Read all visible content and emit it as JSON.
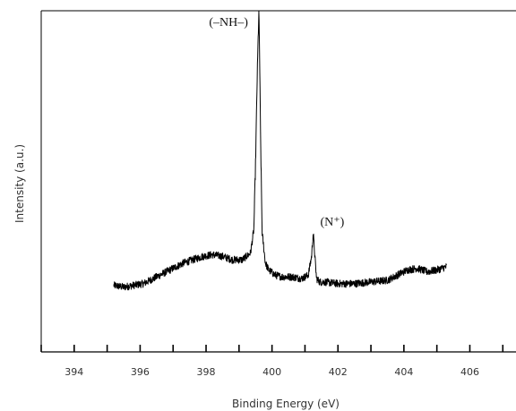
{
  "chart_data": {
    "type": "line",
    "title": "",
    "xlabel": "Binding Energy (eV)",
    "ylabel": "Intensity (a.u.)",
    "xlim": [
      393,
      407.4
    ],
    "ylim": [
      0,
      100
    ],
    "x_ticks": [
      394,
      396,
      398,
      400,
      402,
      404,
      406
    ],
    "x_tick_labels": [
      "394",
      "396",
      "398",
      "400",
      "402",
      "404",
      "406"
    ],
    "y_ticks_labeled": false,
    "grid": false,
    "legend": "none",
    "line_color": "#000000",
    "annotations": [
      {
        "text": "(–NH–)",
        "x": 399.6,
        "y": 95.5
      },
      {
        "text": "(N⁺)",
        "x": 401.3,
        "y": 37
      }
    ],
    "series": [
      {
        "x": [
          395.2,
          395.5,
          395.8,
          396.1,
          396.4,
          396.7,
          397.0,
          397.3,
          397.6,
          397.9,
          398.2,
          398.5,
          398.8,
          399.1,
          399.35,
          399.45,
          399.5,
          399.55,
          399.58,
          399.6,
          399.62,
          399.65,
          399.7,
          399.8,
          399.9,
          400.1,
          400.3,
          400.6,
          400.9,
          401.1,
          401.2,
          401.25,
          401.3,
          401.35,
          401.45,
          401.6,
          402.0,
          402.5,
          403.0,
          403.5,
          403.8,
          404.1,
          404.4,
          404.7,
          405.0,
          405.3
        ],
        "y": [
          19.5,
          19.0,
          19.5,
          20.0,
          21.5,
          23.0,
          24.5,
          26.0,
          27.0,
          28.0,
          28.5,
          28.0,
          27.0,
          27.0,
          29.0,
          36.0,
          55.0,
          80.0,
          92.0,
          99.5,
          90.0,
          65.0,
          35.0,
          26.0,
          24.0,
          22.5,
          22.0,
          22.0,
          21.5,
          22.5,
          28.0,
          35.0,
          28.0,
          21.5,
          20.5,
          20.5,
          20.0,
          20.0,
          20.5,
          21.0,
          22.5,
          24.0,
          24.5,
          23.5,
          24.0,
          25.0
        ]
      }
    ]
  }
}
